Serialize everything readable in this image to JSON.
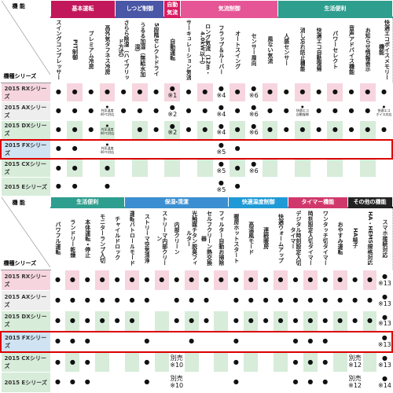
{
  "tables": [
    {
      "corner_top": "機 能",
      "corner_bottom": "機種シリーズ",
      "groups": [
        {
          "label": "基本運転",
          "color": "#c2185b",
          "columns": [
            "スイングコンプレッサー",
            "PIT制御",
            "プレミアム冷房",
            "高外気タフネス冷房"
          ]
        },
        {
          "label": "しつど制御",
          "color": "#4a56a6",
          "columns": [
            "さらら除湿（ハイブリッド方式）",
            "うるる加湿（無給水加湿）",
            "5段階セレクトドライ"
          ]
        },
        {
          "label": "自動気流",
          "color": "#d81b60",
          "columns": [
            "自動運転"
          ]
        },
        {
          "label": "気流制御",
          "color": "#e65596",
          "columns": [
            "サーキュレーション気流",
            "ロング気流（12m・4.0kW以上）",
            "フラップ＆ルーバー",
            "オートスイング",
            "センサー風向",
            "風ない気流"
          ]
        },
        {
          "label": "生活便利",
          "color": "#2e9e8f",
          "columns": [
            "人感センサー",
            "消し忘れ防止機能",
            "快適エコ自動復帰",
            "パワーセレクト",
            "音声アドバイス機能",
            "お知らせ情報表示",
            "快適エコボイスメモリー機能"
          ]
        }
      ],
      "rows": [
        {
          "name": "2015 RXシリーズ",
          "color": "#f6d5df",
          "cells": [
            "●",
            "●",
            "●",
            "●",
            "●",
            "●",
            "●",
            "●\n※1",
            "●",
            "●",
            "●\n※4",
            "●",
            "●\n※6",
            "●",
            "●",
            "●",
            "●",
            "●",
            "●",
            "●",
            "●"
          ]
        },
        {
          "name": "2015 AXシリーズ",
          "color": "#eeeeee",
          "cells": [
            "●",
            "●",
            "●",
            "●\n外気温度46℃対応",
            "●",
            "●",
            "●",
            "●\n※2",
            "●",
            "●",
            "●\n※4",
            "●",
            "●\n※6",
            "●",
            "●",
            "●\n快適エコ自動復帰",
            "●",
            "●",
            "●",
            "●",
            "●\n快適エコボイス対応"
          ]
        },
        {
          "name": "2015 DXシリーズ",
          "color": "#d7ecd9",
          "cells": [
            "●",
            "●",
            "●",
            "●\n外気温度46℃対応",
            null,
            "●",
            "●",
            "●\n※2",
            "●",
            "●",
            "●\n※4",
            "●",
            "●\n※6",
            "●",
            "●",
            "●",
            "●",
            "●",
            "●",
            "●",
            "●"
          ]
        },
        {
          "name": "2015 FXシリーズ",
          "color": "#cfe3f3",
          "highlight": true,
          "cells": [
            "●",
            "●",
            null,
            "●\n外気温度46℃対応",
            null,
            null,
            null,
            null,
            null,
            null,
            "●\n※5",
            "●",
            null,
            null,
            null,
            null,
            null,
            null,
            null,
            null,
            null
          ]
        },
        {
          "name": "2015 CXシリーズ",
          "color": "#d7ecd9",
          "cells": [
            "●",
            "●",
            null,
            "●",
            null,
            null,
            null,
            null,
            null,
            null,
            "●\n※5",
            "●",
            "●\n※6",
            null,
            null,
            null,
            null,
            null,
            null,
            null,
            null
          ]
        },
        {
          "name": "2015 Eシリーズ",
          "color": "#d7ecd9",
          "cells": [
            "●",
            "●",
            null,
            "●",
            null,
            null,
            null,
            null,
            null,
            null,
            "●\n※5",
            "●",
            null,
            null,
            null,
            null,
            null,
            null,
            null,
            null,
            null
          ]
        }
      ]
    },
    {
      "corner_top": "機 能",
      "corner_bottom": "機種シリーズ",
      "groups": [
        {
          "label": "生活便利",
          "color": "#2e9e8f",
          "columns": [
            "パワフル運転",
            "ランドリー乾燥",
            "本体運転・停止",
            "モニターランプ入切",
            "チャイルドロック"
          ]
        },
        {
          "label": "保湿・清潔",
          "color": "#3b8fd0",
          "columns": [
            "運転パトロールモード",
            "ストリーマ空気清浄",
            "ストリーマ内部クリーン",
            "内部クリーン",
            "光触媒チタン脱臭フィルター",
            "セルフクリーン熱交換器",
            "フィルター自動お掃除"
          ]
        },
        {
          "label": "快適温度制御",
          "color": "#1f9ad6",
          "columns": [
            "暖房ホットスタート",
            "高温風モード",
            "連続暖房",
            "快適ウォームアップ"
          ]
        },
        {
          "label": "タイマー機能",
          "color": "#d0386c",
          "columns": [
            "デジタル時刻設定入切タイマー",
            "時刻設定入切タイマー",
            "ワンタッチ切タイマー",
            "おやすみ運転"
          ]
        },
        {
          "label": "その他の機能",
          "color": "#222222",
          "columns": [
            "HA端子",
            "HA・HEMS規格対応",
            "スマホ接続対応"
          ]
        }
      ],
      "rows": [
        {
          "name": "2015 RXシリーズ",
          "color": "#f6d5df",
          "cells": [
            "●",
            "●",
            "●",
            "●",
            "●",
            "●",
            "●",
            "●",
            "●",
            "●",
            "●",
            "●",
            "●",
            "●",
            "●",
            "●",
            "●",
            "●",
            "●",
            "●",
            "●",
            "●",
            "●\n※13"
          ]
        },
        {
          "name": "2015 AXシリーズ",
          "color": "#eeeeee",
          "cells": [
            "●",
            "●",
            "●",
            "●",
            "●",
            "●",
            "●",
            null,
            "●",
            "●",
            "●",
            null,
            "●",
            "●",
            "●",
            "●",
            "●",
            "●",
            "●",
            "●",
            "●",
            "●",
            "●\n※13"
          ]
        },
        {
          "name": "2015 DXシリーズ",
          "color": "#d7ecd9",
          "cells": [
            "●",
            "●",
            "●",
            "●",
            "●",
            "●",
            null,
            null,
            "●",
            "●",
            "●",
            null,
            "●",
            "●",
            "●",
            "●",
            "●",
            "●",
            "●",
            "●",
            "●",
            "●",
            "●\n※13"
          ]
        },
        {
          "name": "2015 FXシリーズ",
          "color": "#cfe3f3",
          "highlight": true,
          "cells": [
            "●",
            "●",
            "●",
            null,
            null,
            null,
            "●",
            null,
            null,
            "●",
            null,
            null,
            "●",
            null,
            null,
            null,
            "●",
            "●",
            "●",
            null,
            null,
            null,
            "●\n※13"
          ]
        },
        {
          "name": "2015 CXシリーズ",
          "color": "#d7ecd9",
          "cells": [
            "●",
            "●",
            "●",
            null,
            null,
            null,
            "●",
            null,
            "別売\n※10",
            null,
            null,
            null,
            "●",
            null,
            null,
            null,
            "●",
            "●",
            "●",
            null,
            "別売\n※12",
            null,
            "●\n※13"
          ]
        },
        {
          "name": "2015 Eシリーズ",
          "color": "#d7ecd9",
          "cells": [
            "●",
            "●",
            "●",
            null,
            null,
            null,
            "●",
            null,
            "別売\n※10",
            null,
            null,
            null,
            "●",
            null,
            null,
            null,
            "●",
            "●",
            "●",
            null,
            "別売\n※12",
            null,
            "●\n※14"
          ]
        }
      ]
    }
  ]
}
